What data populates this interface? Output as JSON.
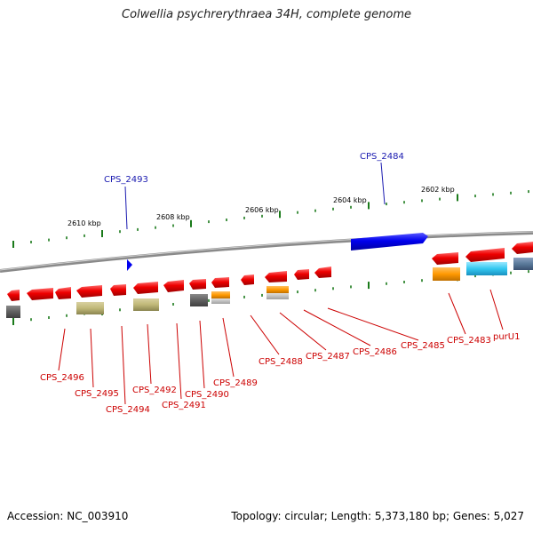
{
  "title": "Colwellia psychrerythraea 34H, complete genome",
  "footer": {
    "accession": "Accession: NC_003910",
    "topology": "Topology: circular; Length: 5,373,180 bp; Genes: 5,027"
  },
  "colors": {
    "forward_label": "#1a1ab0",
    "reverse_label": "#cc0000",
    "backbone": "#808080",
    "tick": "#1a7a1a",
    "cds": "#ee0000",
    "forward_cds": "#0000ee",
    "trna": "#ff9900",
    "rrna": "#33c8f0",
    "misc": "#5a6a80",
    "pseudo": "#666666",
    "rna_olive": "#c0b878"
  },
  "scale_labels": [
    "2610 kbp",
    "2608 kbp",
    "2606 kbp",
    "2604 kbp",
    "2602 kbp"
  ],
  "forward_labels": [
    {
      "text": "CPS_2493"
    },
    {
      "text": "CPS_2484"
    }
  ],
  "reverse_labels": [
    {
      "text": "CPS_2496"
    },
    {
      "text": "CPS_2495"
    },
    {
      "text": "CPS_2494"
    },
    {
      "text": "CPS_2492"
    },
    {
      "text": "CPS_2491"
    },
    {
      "text": "CPS_2490"
    },
    {
      "text": "CPS_2489"
    },
    {
      "text": "CPS_2488"
    },
    {
      "text": "CPS_2487"
    },
    {
      "text": "CPS_2486"
    },
    {
      "text": "CPS_2485"
    },
    {
      "text": "CPS_2483"
    },
    {
      "text": "purU1"
    }
  ]
}
